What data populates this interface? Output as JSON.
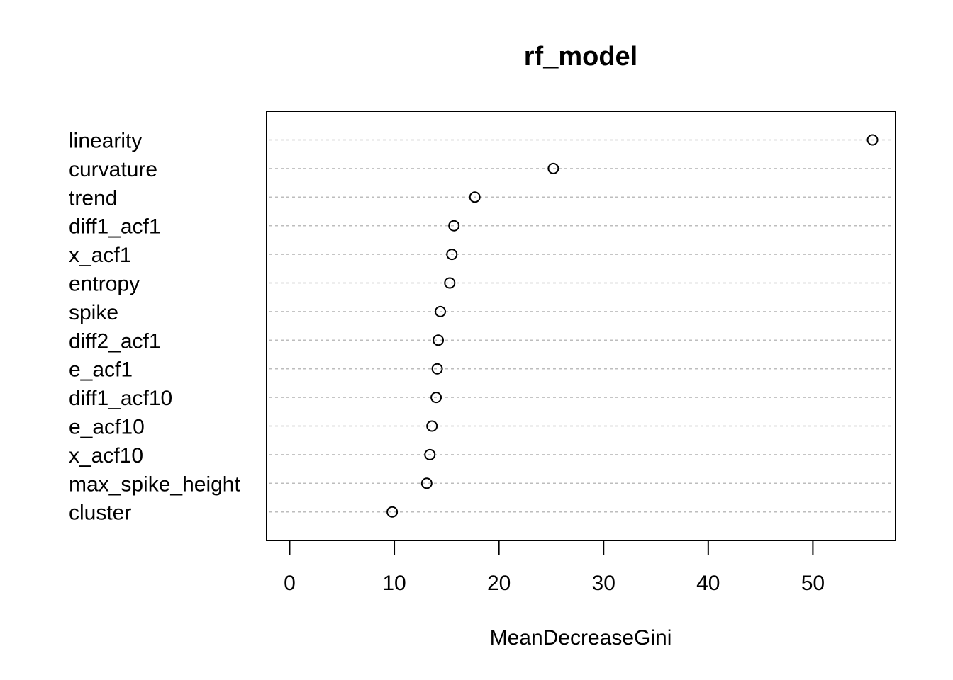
{
  "chart_data": {
    "type": "scatter",
    "title": "rf_model",
    "xlabel": "MeanDecreaseGini",
    "ylabel": "",
    "categories": [
      "linearity",
      "curvature",
      "trend",
      "diff1_acf1",
      "x_acf1",
      "entropy",
      "spike",
      "diff2_acf1",
      "e_acf1",
      "diff1_acf10",
      "e_acf10",
      "x_acf10",
      "max_spike_height",
      "cluster"
    ],
    "values": [
      55.7,
      25.2,
      17.7,
      15.7,
      15.5,
      15.3,
      14.4,
      14.2,
      14.1,
      14.0,
      13.6,
      13.4,
      13.1,
      9.8
    ],
    "xlim": [
      -2.2,
      57.9
    ],
    "xticks": [
      0,
      10,
      20,
      30,
      40,
      50
    ],
    "grid": "horizontal dotted guides"
  }
}
